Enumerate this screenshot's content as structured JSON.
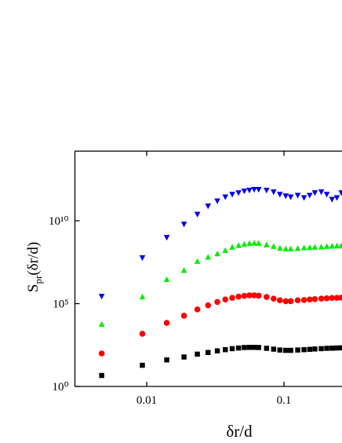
{
  "chart_data": {
    "type": "scatter",
    "log_x": true,
    "log_y": true,
    "xlabel": "δr/d",
    "ylabel": {
      "base": "S",
      "sub": "pr",
      "rest": "(δr/d)"
    },
    "xlim": [
      0.003,
      0.27
    ],
    "ylim": [
      1,
      160000000000000.0
    ],
    "xticks": [
      0.01,
      0.1
    ],
    "yticks": [
      {
        "value": 1,
        "label": "10⁰"
      },
      {
        "value": 100000,
        "label": "10⁵"
      },
      {
        "value": 10000000000,
        "label": "10¹⁰"
      }
    ],
    "x": [
      0.0047,
      0.0093,
      0.014,
      0.0187,
      0.0234,
      0.028,
      0.0327,
      0.0374,
      0.042,
      0.0467,
      0.0514,
      0.056,
      0.0607,
      0.0654,
      0.0747,
      0.0841,
      0.0934,
      0.103,
      0.112,
      0.126,
      0.14,
      0.154,
      0.168,
      0.187,
      0.205,
      0.224,
      0.243,
      0.262
    ],
    "series": [
      {
        "color": "#000000",
        "marker": "square",
        "values": [
          4.6,
          19,
          40,
          60,
          89,
          112,
          141,
          166,
          191,
          209,
          224,
          229,
          229,
          224,
          200,
          178,
          158,
          151,
          151,
          158,
          166,
          174,
          182,
          191,
          200,
          204,
          209,
          214
        ]
      },
      {
        "color": "#ff0000",
        "marker": "circle",
        "values": [
          98,
          1510,
          6900,
          18600,
          44700,
          79000,
          126000,
          178000,
          224000,
          263000,
          295000,
          316000,
          316000,
          302000,
          251000,
          200000,
          158000,
          141000,
          141000,
          158000,
          166000,
          178000,
          186000,
          200000,
          209000,
          219000,
          224000,
          229000
        ]
      },
      {
        "color": "#00ee00",
        "marker": "triangle-up",
        "values": [
          5500,
          251000,
          2800000.0,
          10000000.0,
          35000000.0,
          63000000.0,
          100000000.0,
          160000000.0,
          250000000.0,
          320000000.0,
          380000000.0,
          420000000.0,
          440000000.0,
          430000000.0,
          350000000.0,
          280000000.0,
          220000000.0,
          200000000.0,
          200000000.0,
          210000000.0,
          230000000.0,
          240000000.0,
          250000000.0,
          260000000.0,
          280000000.0,
          290000000.0,
          300000000.0,
          300000000.0
        ]
      },
      {
        "color": "#0000ee",
        "marker": "triangle-down",
        "values": [
          280000.0,
          59000000.0,
          1000000000.0,
          6300000000.0,
          25000000000.0,
          79000000000.0,
          160000000000.0,
          280000000000.0,
          400000000000.0,
          500000000000.0,
          630000000000.0,
          710000000000.0,
          790000000000.0,
          790000000000.0,
          710000000000.0,
          560000000000.0,
          400000000000.0,
          320000000000.0,
          280000000000.0,
          350000000000.0,
          250000000000.0,
          350000000000.0,
          500000000000.0,
          560000000000.0,
          400000000000.0,
          200000000000.0,
          250000000000.0,
          500000000000.0
        ]
      }
    ]
  }
}
